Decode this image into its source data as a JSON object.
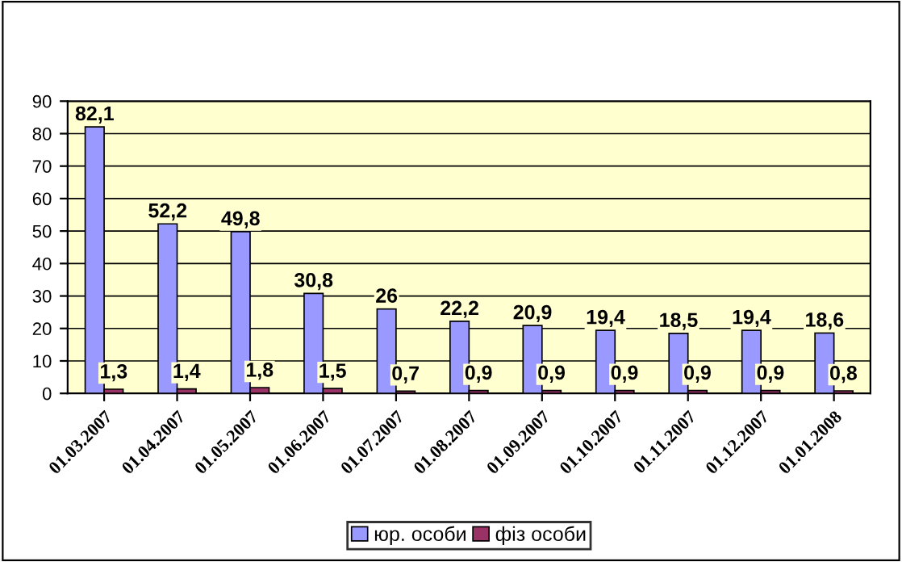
{
  "chart_data": {
    "type": "bar",
    "categories": [
      "01.03.2007",
      "01.04.2007",
      "01.05.2007",
      "01.06.2007",
      "01.07.2007",
      "01.08.2007",
      "01.09.2007",
      "01.10.2007",
      "01.11.2007",
      "01.12.2007",
      "01.01.2008"
    ],
    "series": [
      {
        "name": "юр. особи",
        "color": "#9999ff",
        "values": [
          82.1,
          52.2,
          49.8,
          30.8,
          26,
          22.2,
          20.9,
          19.4,
          18.5,
          19.4,
          18.6
        ],
        "value_labels": [
          "82,1",
          "52,2",
          "49,8",
          "30,8",
          "26",
          "22,2",
          "20,9",
          "19,4",
          "18,5",
          "19,4",
          "18,6"
        ]
      },
      {
        "name": "фіз особи",
        "color": "#993366",
        "values": [
          1.3,
          1.4,
          1.8,
          1.5,
          0.7,
          0.9,
          0.9,
          0.9,
          0.9,
          0.9,
          0.8
        ],
        "value_labels": [
          "1,3",
          "1,4",
          "1,8",
          "1,5",
          "0,7",
          "0,9",
          "0,9",
          "0,9",
          "0,9",
          "0,9",
          "0,8"
        ]
      }
    ],
    "ylim": [
      0,
      90
    ],
    "yticks": [
      0,
      10,
      20,
      30,
      40,
      50,
      60,
      70,
      80,
      90
    ],
    "grid": "y",
    "legend": "bottom"
  }
}
